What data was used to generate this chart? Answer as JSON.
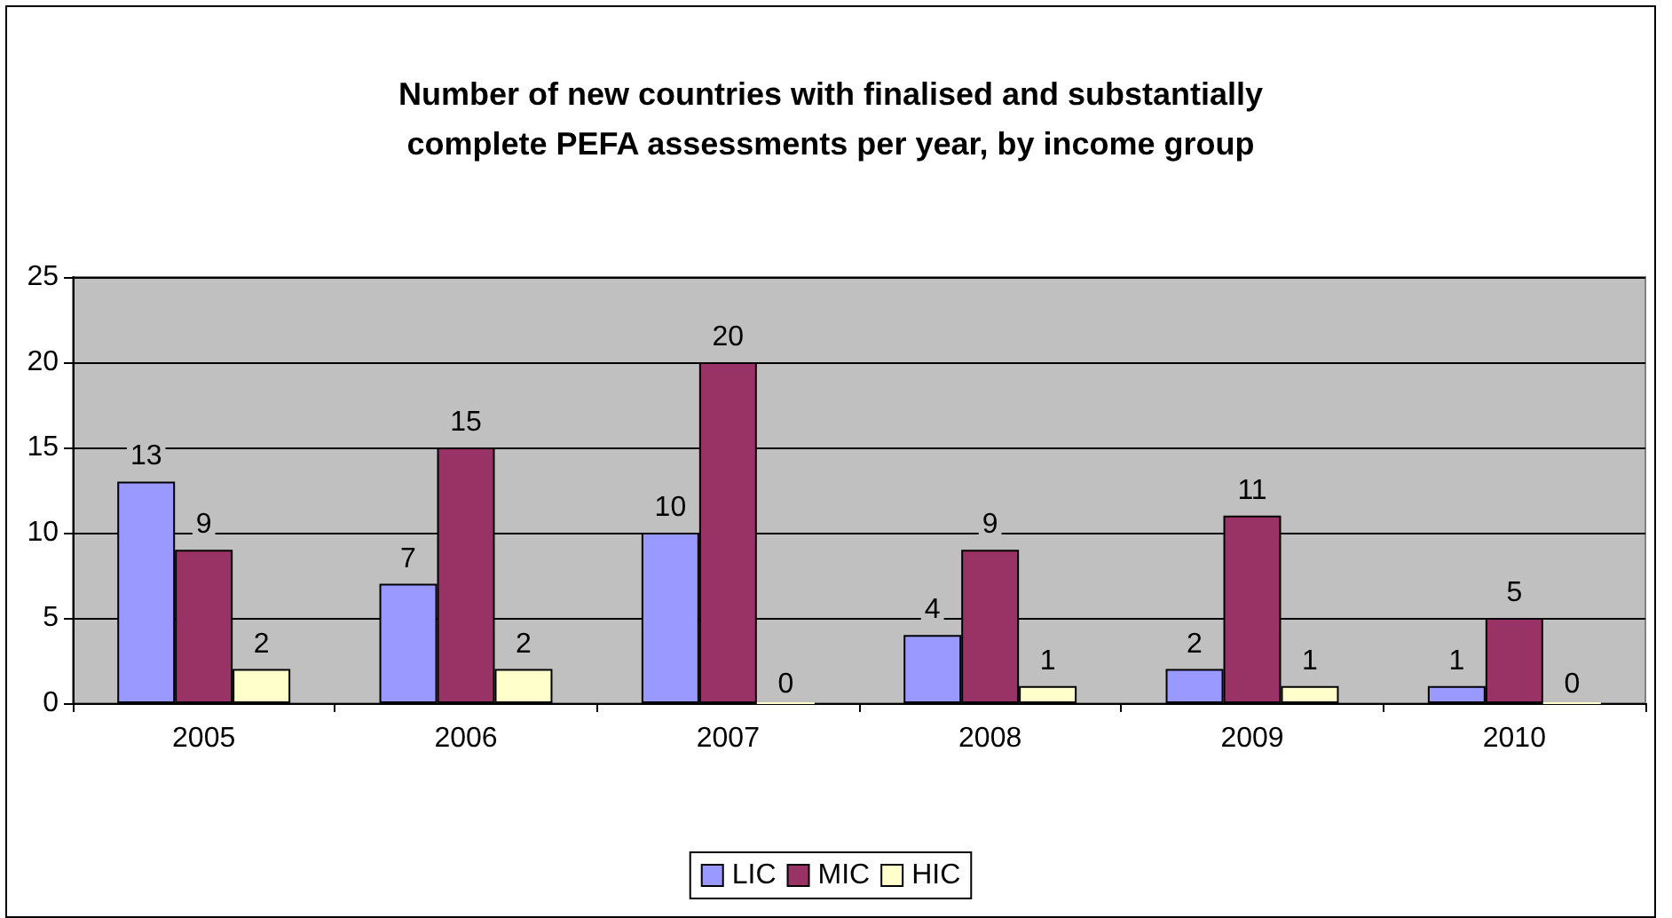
{
  "chart_data": {
    "type": "bar",
    "title": "Number of new countries with finalised and substantially\ncomplete PEFA assessments per year, by income group",
    "categories": [
      "2005",
      "2006",
      "2007",
      "2008",
      "2009",
      "2010"
    ],
    "series": [
      {
        "name": "LIC",
        "color": "#9999ff",
        "values": [
          13,
          7,
          10,
          4,
          2,
          1
        ]
      },
      {
        "name": "MIC",
        "color": "#993366",
        "values": [
          9,
          15,
          20,
          9,
          11,
          5
        ]
      },
      {
        "name": "HIC",
        "color": "#ffffcc",
        "values": [
          2,
          2,
          0,
          1,
          1,
          0
        ]
      }
    ],
    "ylim": [
      0,
      25
    ],
    "yticks": [
      0,
      5,
      10,
      15,
      20,
      25
    ],
    "grid": "y",
    "legend": "bottom",
    "data_labels": true
  }
}
